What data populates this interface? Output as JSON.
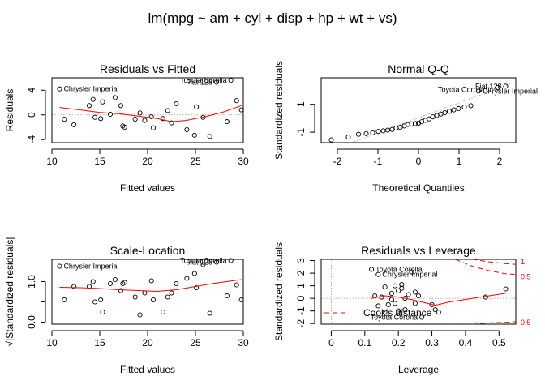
{
  "figure_title": "lm(mpg ~ am + cyl + disp + hp + wt + vs)",
  "colors": {
    "smooth": "#ff0000",
    "points": "#000000",
    "reference": "#999999"
  },
  "chart_data": [
    {
      "type": "scatter",
      "title": "Residuals vs Fitted",
      "xlabel": "Fitted values",
      "ylabel": "Residuals",
      "xlim": [
        10,
        30
      ],
      "ylim": [
        -4.5,
        6
      ],
      "xticks": [
        10,
        15,
        20,
        25,
        30
      ],
      "yticks": [
        -4,
        0,
        4
      ],
      "reference_line": {
        "y": 0,
        "style": "dotted"
      },
      "points": [
        {
          "x": 10.8,
          "y": 4.2
        },
        {
          "x": 11.3,
          "y": -0.7
        },
        {
          "x": 12.3,
          "y": -1.6
        },
        {
          "x": 13.9,
          "y": 1.5
        },
        {
          "x": 14.3,
          "y": 2.5
        },
        {
          "x": 14.5,
          "y": -0.4
        },
        {
          "x": 15.1,
          "y": -0.6
        },
        {
          "x": 15.3,
          "y": 2.1
        },
        {
          "x": 16.1,
          "y": 0.1
        },
        {
          "x": 16.6,
          "y": 2.8
        },
        {
          "x": 17.2,
          "y": 1.5
        },
        {
          "x": 17.4,
          "y": -1.8
        },
        {
          "x": 17.6,
          "y": -2.0
        },
        {
          "x": 18.7,
          "y": -0.7
        },
        {
          "x": 19.2,
          "y": 0.3
        },
        {
          "x": 19.7,
          "y": -0.9
        },
        {
          "x": 20.4,
          "y": -0.3
        },
        {
          "x": 20.6,
          "y": -2.1
        },
        {
          "x": 21.6,
          "y": -0.6
        },
        {
          "x": 22.1,
          "y": 0.7
        },
        {
          "x": 22.5,
          "y": -1.3
        },
        {
          "x": 23.0,
          "y": 1.8
        },
        {
          "x": 24.1,
          "y": -2.4
        },
        {
          "x": 24.9,
          "y": -3.3
        },
        {
          "x": 25.1,
          "y": 1.3
        },
        {
          "x": 25.8,
          "y": -0.4
        },
        {
          "x": 26.5,
          "y": -3.5
        },
        {
          "x": 27.2,
          "y": 5.3
        },
        {
          "x": 28.3,
          "y": -1.1
        },
        {
          "x": 28.7,
          "y": 5.6
        },
        {
          "x": 29.3,
          "y": 2.3
        },
        {
          "x": 29.8,
          "y": 0.8
        }
      ],
      "smooth_line": [
        {
          "x": 10.8,
          "y": 1.2
        },
        {
          "x": 13,
          "y": 0.8
        },
        {
          "x": 15,
          "y": 0.4
        },
        {
          "x": 17,
          "y": 0.2
        },
        {
          "x": 19,
          "y": -0.2
        },
        {
          "x": 21,
          "y": -0.6
        },
        {
          "x": 22.5,
          "y": -1.1
        },
        {
          "x": 24,
          "y": -0.9
        },
        {
          "x": 26,
          "y": -0.3
        },
        {
          "x": 28,
          "y": 0.5
        },
        {
          "x": 29.8,
          "y": 1.5
        }
      ],
      "labels": [
        {
          "text": "Chrysler Imperial",
          "x": 10.8,
          "y": 4.2,
          "pos": "right"
        },
        {
          "text": "Toyota Corolla",
          "x": 28.7,
          "y": 5.6,
          "pos": "left"
        },
        {
          "text": "Fiat 128",
          "x": 27.2,
          "y": 5.3,
          "pos": "left"
        }
      ]
    },
    {
      "type": "scatter",
      "title": "Normal Q-Q",
      "xlabel": "Theoretical Quantiles",
      "ylabel": "Standardized residuals",
      "xlim": [
        -2.4,
        2.4
      ],
      "ylim": [
        -1.75,
        2.9
      ],
      "xticks": [
        -2,
        -1,
        0,
        1,
        2
      ],
      "yticks": [
        -1,
        1
      ],
      "reference_line": {
        "from": [
          -1.65,
          -1.75
        ],
        "to": [
          2.25,
          2.45
        ],
        "style": "dotted"
      },
      "points": [
        {
          "x": -2.15,
          "y": -1.55
        },
        {
          "x": -1.73,
          "y": -1.35
        },
        {
          "x": -1.48,
          "y": -1.15
        },
        {
          "x": -1.29,
          "y": -1.1
        },
        {
          "x": -1.13,
          "y": -1.05
        },
        {
          "x": -0.99,
          "y": -0.95
        },
        {
          "x": -0.87,
          "y": -0.9
        },
        {
          "x": -0.76,
          "y": -0.85
        },
        {
          "x": -0.65,
          "y": -0.8
        },
        {
          "x": -0.55,
          "y": -0.7
        },
        {
          "x": -0.45,
          "y": -0.65
        },
        {
          "x": -0.35,
          "y": -0.55
        },
        {
          "x": -0.26,
          "y": -0.45
        },
        {
          "x": -0.17,
          "y": -0.4
        },
        {
          "x": -0.08,
          "y": -0.38
        },
        {
          "x": 0.0,
          "y": -0.35
        },
        {
          "x": 0.08,
          "y": -0.25
        },
        {
          "x": 0.17,
          "y": -0.15
        },
        {
          "x": 0.26,
          "y": -0.05
        },
        {
          "x": 0.35,
          "y": 0.1
        },
        {
          "x": 0.45,
          "y": 0.2
        },
        {
          "x": 0.55,
          "y": 0.3
        },
        {
          "x": 0.65,
          "y": 0.4
        },
        {
          "x": 0.76,
          "y": 0.5
        },
        {
          "x": 0.87,
          "y": 0.6
        },
        {
          "x": 0.99,
          "y": 0.7
        },
        {
          "x": 1.13,
          "y": 0.8
        },
        {
          "x": 1.29,
          "y": 0.9
        },
        {
          "x": 1.48,
          "y": 1.95
        },
        {
          "x": 1.73,
          "y": 2.05
        },
        {
          "x": 1.95,
          "y": 2.2
        },
        {
          "x": 2.15,
          "y": 2.3
        }
      ],
      "labels": [
        {
          "text": "Toyota Corolla",
          "x": 1.73,
          "y": 2.05,
          "pos": "left"
        },
        {
          "text": "Fiat 128",
          "x": 2.15,
          "y": 2.3,
          "pos": "left"
        },
        {
          "text": "Chrysler Imperial",
          "x": 1.48,
          "y": 1.95,
          "pos": "right"
        }
      ]
    },
    {
      "type": "scatter",
      "title": "Scale-Location",
      "xlabel": "Fitted values",
      "ylabel": "√|Standardized residuals|",
      "xlim": [
        10,
        30
      ],
      "ylim": [
        -0.05,
        1.55
      ],
      "xticks": [
        10,
        15,
        20,
        25,
        30
      ],
      "yticks": [
        0.0,
        0.5,
        1.0
      ],
      "ytick_labels": [
        "0.0",
        "",
        "1.0"
      ],
      "points": [
        {
          "x": 10.8,
          "y": 1.38
        },
        {
          "x": 11.3,
          "y": 0.55
        },
        {
          "x": 12.3,
          "y": 0.88
        },
        {
          "x": 13.9,
          "y": 0.88
        },
        {
          "x": 14.3,
          "y": 1.0
        },
        {
          "x": 14.5,
          "y": 0.5
        },
        {
          "x": 15.1,
          "y": 0.55
        },
        {
          "x": 15.3,
          "y": 0.25
        },
        {
          "x": 16.1,
          "y": 0.95
        },
        {
          "x": 16.6,
          "y": 1.05
        },
        {
          "x": 17.2,
          "y": 0.78
        },
        {
          "x": 17.4,
          "y": 0.95
        },
        {
          "x": 17.6,
          "y": 0.98
        },
        {
          "x": 18.7,
          "y": 0.62
        },
        {
          "x": 19.2,
          "y": 0.18
        },
        {
          "x": 19.7,
          "y": 0.72
        },
        {
          "x": 20.4,
          "y": 1.02
        },
        {
          "x": 20.6,
          "y": 0.55
        },
        {
          "x": 21.6,
          "y": 0.25
        },
        {
          "x": 22.1,
          "y": 0.62
        },
        {
          "x": 22.5,
          "y": 0.72
        },
        {
          "x": 23.0,
          "y": 0.95
        },
        {
          "x": 24.1,
          "y": 1.08
        },
        {
          "x": 24.9,
          "y": 1.2
        },
        {
          "x": 25.1,
          "y": 0.85
        },
        {
          "x": 25.8,
          "y": 1.42
        },
        {
          "x": 26.5,
          "y": 0.22
        },
        {
          "x": 27.2,
          "y": 1.48
        },
        {
          "x": 28.3,
          "y": 0.65
        },
        {
          "x": 28.7,
          "y": 1.52
        },
        {
          "x": 29.3,
          "y": 0.92
        },
        {
          "x": 29.8,
          "y": 0.55
        }
      ],
      "smooth_line": [
        {
          "x": 10.8,
          "y": 0.86
        },
        {
          "x": 13,
          "y": 0.85
        },
        {
          "x": 15,
          "y": 0.83
        },
        {
          "x": 17,
          "y": 0.8
        },
        {
          "x": 19,
          "y": 0.78
        },
        {
          "x": 21,
          "y": 0.76
        },
        {
          "x": 23,
          "y": 0.8
        },
        {
          "x": 25,
          "y": 0.88
        },
        {
          "x": 27,
          "y": 0.96
        },
        {
          "x": 29.8,
          "y": 1.05
        }
      ],
      "labels": [
        {
          "text": "Chrysler Imperial",
          "x": 10.8,
          "y": 1.38,
          "pos": "right"
        },
        {
          "text": "Toyota Corolla",
          "x": 28.7,
          "y": 1.52,
          "pos": "left"
        },
        {
          "text": "Fiat 128",
          "x": 27.2,
          "y": 1.48,
          "pos": "left"
        }
      ]
    },
    {
      "type": "scatter",
      "title": "Residuals vs Leverage",
      "xlabel": "Leverage",
      "ylabel": "Standardized residuals",
      "xlim": [
        -0.03,
        0.55
      ],
      "ylim": [
        -2.05,
        3.1
      ],
      "xticks": [
        0.0,
        0.1,
        0.2,
        0.3,
        0.4,
        0.5
      ],
      "yticks": [
        -2,
        -1,
        0,
        1,
        2,
        3
      ],
      "reference_lines": [
        {
          "y": 0,
          "style": "dotted"
        },
        {
          "x": 0,
          "style": "dotted"
        }
      ],
      "points": [
        {
          "x": 0.12,
          "y": 2.3
        },
        {
          "x": 0.14,
          "y": 1.9
        },
        {
          "x": 0.15,
          "y": 0.1
        },
        {
          "x": 0.16,
          "y": 0.9
        },
        {
          "x": 0.17,
          "y": -0.5
        },
        {
          "x": 0.18,
          "y": 0.4
        },
        {
          "x": 0.19,
          "y": 1.0
        },
        {
          "x": 0.19,
          "y": -0.4
        },
        {
          "x": 0.2,
          "y": 0.6
        },
        {
          "x": 0.2,
          "y": -1.0
        },
        {
          "x": 0.21,
          "y": 0.8
        },
        {
          "x": 0.21,
          "y": 1.1
        },
        {
          "x": 0.22,
          "y": 0.0
        },
        {
          "x": 0.22,
          "y": -0.9
        },
        {
          "x": 0.23,
          "y": 0.3
        },
        {
          "x": 0.18,
          "y": -0.1
        },
        {
          "x": 0.16,
          "y": -1.1
        },
        {
          "x": 0.25,
          "y": 0.5
        },
        {
          "x": 0.25,
          "y": -0.4
        },
        {
          "x": 0.26,
          "y": 0.2
        },
        {
          "x": 0.27,
          "y": -1.5
        },
        {
          "x": 0.3,
          "y": -0.5
        },
        {
          "x": 0.31,
          "y": -0.9
        },
        {
          "x": 0.32,
          "y": -1.1
        },
        {
          "x": 0.46,
          "y": 0.1
        },
        {
          "x": 0.52,
          "y": 0.75
        },
        {
          "x": 0.24,
          "y": 2.1
        },
        {
          "x": 0.14,
          "y": -0.6
        },
        {
          "x": 0.13,
          "y": 0.2
        }
      ],
      "smooth_line": [
        {
          "x": 0.12,
          "y": 0.0
        },
        {
          "x": 0.16,
          "y": 0.2
        },
        {
          "x": 0.2,
          "y": 0.1
        },
        {
          "x": 0.24,
          "y": -0.1
        },
        {
          "x": 0.28,
          "y": -0.35
        },
        {
          "x": 0.31,
          "y": -0.55
        },
        {
          "x": 0.35,
          "y": -0.3
        },
        {
          "x": 0.42,
          "y": 0.0
        },
        {
          "x": 0.52,
          "y": 0.4
        }
      ],
      "cooks_contours": [
        {
          "label": "1",
          "sign": 1,
          "points": [
            {
              "x": 0.42,
              "y": 3.1
            },
            {
              "x": 0.47,
              "y": 2.9
            },
            {
              "x": 0.52,
              "y": 2.75
            },
            {
              "x": 0.55,
              "y": 2.7
            }
          ]
        },
        {
          "label": "0.5",
          "sign": 1,
          "points": [
            {
              "x": 0.37,
              "y": 3.1
            },
            {
              "x": 0.42,
              "y": 2.55
            },
            {
              "x": 0.47,
              "y": 2.2
            },
            {
              "x": 0.52,
              "y": 1.95
            },
            {
              "x": 0.55,
              "y": 1.9
            }
          ]
        },
        {
          "label": "0.5",
          "sign": -1,
          "points": [
            {
              "x": 0.42,
              "y": -2.05
            },
            {
              "x": 0.47,
              "y": -1.95
            },
            {
              "x": 0.52,
              "y": -1.9
            },
            {
              "x": 0.55,
              "y": -1.85
            }
          ]
        }
      ],
      "legend": {
        "text": "Cook's distance",
        "placement": "bottom-left"
      },
      "labels": [
        {
          "text": "Toyota Corolla",
          "x": 0.12,
          "y": 2.3,
          "pos": "right"
        },
        {
          "text": "Chrysler Imperial",
          "x": 0.14,
          "y": 1.9,
          "pos": "right"
        },
        {
          "text": "Toyota Corona",
          "x": 0.27,
          "y": -1.5,
          "pos": "left"
        }
      ]
    }
  ]
}
